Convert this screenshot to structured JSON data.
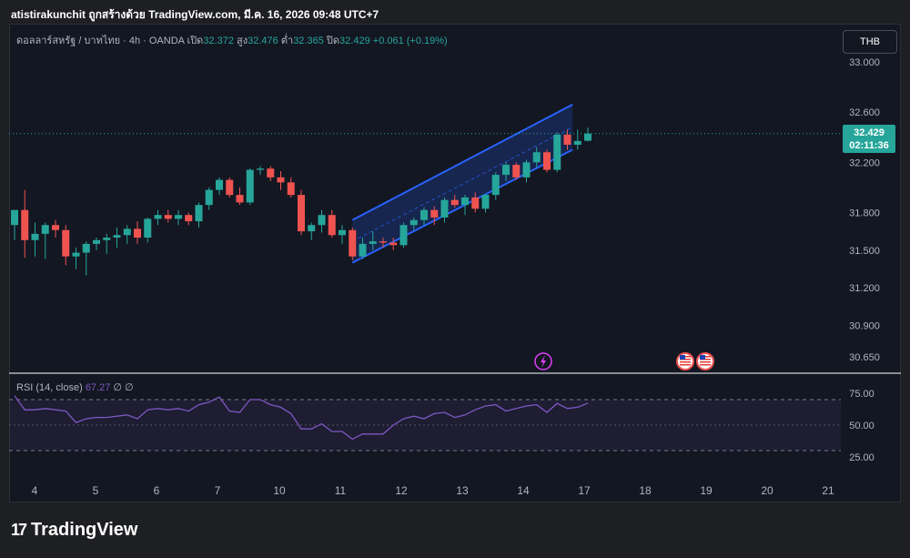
{
  "header": {
    "text": "atistirakunchit ถูกสร้างด้วย TradingView.com, มี.ค. 16, 2026 09:48 UTC+7"
  },
  "legend": {
    "symbol": "ดอลลาร์สหรัฐ / บาทไทย · 4h · OANDA",
    "open_label": "เปิด",
    "open": "32.372",
    "high_label": "สูง",
    "high": "32.476",
    "low_label": "ต่ำ",
    "low": "32.365",
    "close_label": "ปิด",
    "close": "32.429",
    "change": "+0.061 (+0.19%)"
  },
  "currency_button": "THB",
  "price_tag": {
    "price": "32.429",
    "countdown": "02:11:36"
  },
  "rsi": {
    "label": "RSI (14, close)",
    "value": "67.27",
    "extra": "∅ ∅"
  },
  "logo": {
    "mark": "17",
    "text": "TradingView"
  },
  "colors": {
    "up": "#26a69a",
    "down": "#ef5350",
    "channel": "#2962ff",
    "rsi": "#7e57c2",
    "background": "#131722"
  },
  "event_icons": [
    "lightning-icon",
    "us-flag-icon",
    "us-flag-icon"
  ],
  "chart_data": [
    {
      "type": "candlestick",
      "title": "",
      "x_tick_labels": [
        "4",
        "5",
        "6",
        "7",
        "10",
        "11",
        "12",
        "13",
        "14",
        "17",
        "18",
        "19",
        "20",
        "21"
      ],
      "y_tick_labels": [
        "33.000",
        "32.600",
        "32.200",
        "31.800",
        "31.500",
        "31.200",
        "30.900",
        "30.650"
      ],
      "ylim": [
        30.55,
        33.1
      ],
      "last_price": 32.429,
      "candles": [
        {
          "o": 31.7,
          "h": 31.82,
          "l": 31.58,
          "c": 31.82
        },
        {
          "o": 31.82,
          "h": 31.98,
          "l": 31.44,
          "c": 31.58
        },
        {
          "o": 31.58,
          "h": 31.72,
          "l": 31.45,
          "c": 31.63
        },
        {
          "o": 31.63,
          "h": 31.72,
          "l": 31.43,
          "c": 31.7
        },
        {
          "o": 31.7,
          "h": 31.74,
          "l": 31.6,
          "c": 31.66
        },
        {
          "o": 31.66,
          "h": 31.7,
          "l": 31.38,
          "c": 31.45
        },
        {
          "o": 31.45,
          "h": 31.52,
          "l": 31.35,
          "c": 31.48
        },
        {
          "o": 31.48,
          "h": 31.57,
          "l": 31.3,
          "c": 31.55
        },
        {
          "o": 31.55,
          "h": 31.6,
          "l": 31.5,
          "c": 31.58
        },
        {
          "o": 31.58,
          "h": 31.63,
          "l": 31.47,
          "c": 31.6
        },
        {
          "o": 31.6,
          "h": 31.68,
          "l": 31.52,
          "c": 31.62
        },
        {
          "o": 31.62,
          "h": 31.7,
          "l": 31.55,
          "c": 31.67
        },
        {
          "o": 31.67,
          "h": 31.73,
          "l": 31.55,
          "c": 31.6
        },
        {
          "o": 31.6,
          "h": 31.76,
          "l": 31.56,
          "c": 31.75
        },
        {
          "o": 31.75,
          "h": 31.82,
          "l": 31.7,
          "c": 31.78
        },
        {
          "o": 31.78,
          "h": 31.82,
          "l": 31.72,
          "c": 31.75
        },
        {
          "o": 31.75,
          "h": 31.82,
          "l": 31.7,
          "c": 31.78
        },
        {
          "o": 31.78,
          "h": 31.8,
          "l": 31.7,
          "c": 31.73
        },
        {
          "o": 31.73,
          "h": 31.88,
          "l": 31.68,
          "c": 31.86
        },
        {
          "o": 31.86,
          "h": 32.0,
          "l": 31.82,
          "c": 31.98
        },
        {
          "o": 31.98,
          "h": 32.08,
          "l": 31.94,
          "c": 32.06
        },
        {
          "o": 32.06,
          "h": 32.08,
          "l": 31.92,
          "c": 31.94
        },
        {
          "o": 31.94,
          "h": 32.0,
          "l": 31.86,
          "c": 31.88
        },
        {
          "o": 31.88,
          "h": 32.15,
          "l": 31.86,
          "c": 32.14
        },
        {
          "o": 32.14,
          "h": 32.17,
          "l": 32.1,
          "c": 32.15
        },
        {
          "o": 32.15,
          "h": 32.17,
          "l": 32.05,
          "c": 32.08
        },
        {
          "o": 32.08,
          "h": 32.13,
          "l": 31.98,
          "c": 32.04
        },
        {
          "o": 32.04,
          "h": 32.08,
          "l": 31.92,
          "c": 31.94
        },
        {
          "o": 31.94,
          "h": 31.98,
          "l": 31.62,
          "c": 31.65
        },
        {
          "o": 31.65,
          "h": 31.72,
          "l": 31.58,
          "c": 31.7
        },
        {
          "o": 31.7,
          "h": 31.82,
          "l": 31.64,
          "c": 31.78
        },
        {
          "o": 31.78,
          "h": 31.82,
          "l": 31.6,
          "c": 31.62
        },
        {
          "o": 31.62,
          "h": 31.7,
          "l": 31.55,
          "c": 31.66
        },
        {
          "o": 31.66,
          "h": 31.68,
          "l": 31.42,
          "c": 31.45
        },
        {
          "o": 31.45,
          "h": 31.6,
          "l": 31.43,
          "c": 31.55
        },
        {
          "o": 31.55,
          "h": 31.65,
          "l": 31.5,
          "c": 31.57
        },
        {
          "o": 31.57,
          "h": 31.6,
          "l": 31.52,
          "c": 31.56
        },
        {
          "o": 31.56,
          "h": 31.6,
          "l": 31.5,
          "c": 31.54
        },
        {
          "o": 31.54,
          "h": 31.72,
          "l": 31.52,
          "c": 31.7
        },
        {
          "o": 31.7,
          "h": 31.76,
          "l": 31.66,
          "c": 31.74
        },
        {
          "o": 31.74,
          "h": 31.84,
          "l": 31.7,
          "c": 31.82
        },
        {
          "o": 31.82,
          "h": 31.85,
          "l": 31.7,
          "c": 31.76
        },
        {
          "o": 31.76,
          "h": 31.92,
          "l": 31.72,
          "c": 31.9
        },
        {
          "o": 31.9,
          "h": 31.94,
          "l": 31.84,
          "c": 31.86
        },
        {
          "o": 31.86,
          "h": 31.94,
          "l": 31.78,
          "c": 31.92
        },
        {
          "o": 31.92,
          "h": 31.96,
          "l": 31.8,
          "c": 31.83
        },
        {
          "o": 31.83,
          "h": 31.95,
          "l": 31.8,
          "c": 31.94
        },
        {
          "o": 31.94,
          "h": 32.12,
          "l": 31.9,
          "c": 32.1
        },
        {
          "o": 32.1,
          "h": 32.2,
          "l": 32.05,
          "c": 32.18
        },
        {
          "o": 32.18,
          "h": 32.2,
          "l": 32.06,
          "c": 32.08
        },
        {
          "o": 32.08,
          "h": 32.22,
          "l": 32.04,
          "c": 32.2
        },
        {
          "o": 32.2,
          "h": 32.32,
          "l": 32.16,
          "c": 32.28
        },
        {
          "o": 32.28,
          "h": 32.3,
          "l": 32.12,
          "c": 32.14
        },
        {
          "o": 32.14,
          "h": 32.44,
          "l": 32.12,
          "c": 32.42
        },
        {
          "o": 32.42,
          "h": 32.46,
          "l": 32.3,
          "c": 32.34
        },
        {
          "o": 32.34,
          "h": 32.46,
          "l": 32.3,
          "c": 32.37
        },
        {
          "o": 32.372,
          "h": 32.476,
          "l": 32.365,
          "c": 32.429
        }
      ],
      "channel": {
        "upper": [
          {
            "i": 33,
            "price": 31.74
          },
          {
            "i": 54.5,
            "price": 32.66
          }
        ],
        "lower": [
          {
            "i": 33,
            "price": 31.4
          },
          {
            "i": 54.5,
            "price": 32.3
          }
        ]
      }
    },
    {
      "type": "line",
      "series": [
        {
          "name": "RSI (14, close)",
          "values": [
            73,
            62,
            62,
            63,
            62,
            61,
            52,
            55,
            56,
            56,
            57,
            58,
            55,
            62,
            63,
            62,
            63,
            61,
            66,
            68,
            72,
            61,
            60,
            70,
            70,
            66,
            64,
            59,
            47,
            47,
            51,
            45,
            45,
            39,
            43,
            43,
            43,
            50,
            55,
            57,
            55,
            59,
            60,
            56,
            58,
            62,
            65,
            66,
            61,
            63,
            65,
            66,
            60,
            67,
            63,
            64,
            67.27
          ]
        }
      ],
      "y_tick_labels": [
        "75.00",
        "50.00",
        "25.00"
      ],
      "ylim": [
        18,
        82
      ],
      "bands": [
        30,
        70
      ]
    }
  ]
}
